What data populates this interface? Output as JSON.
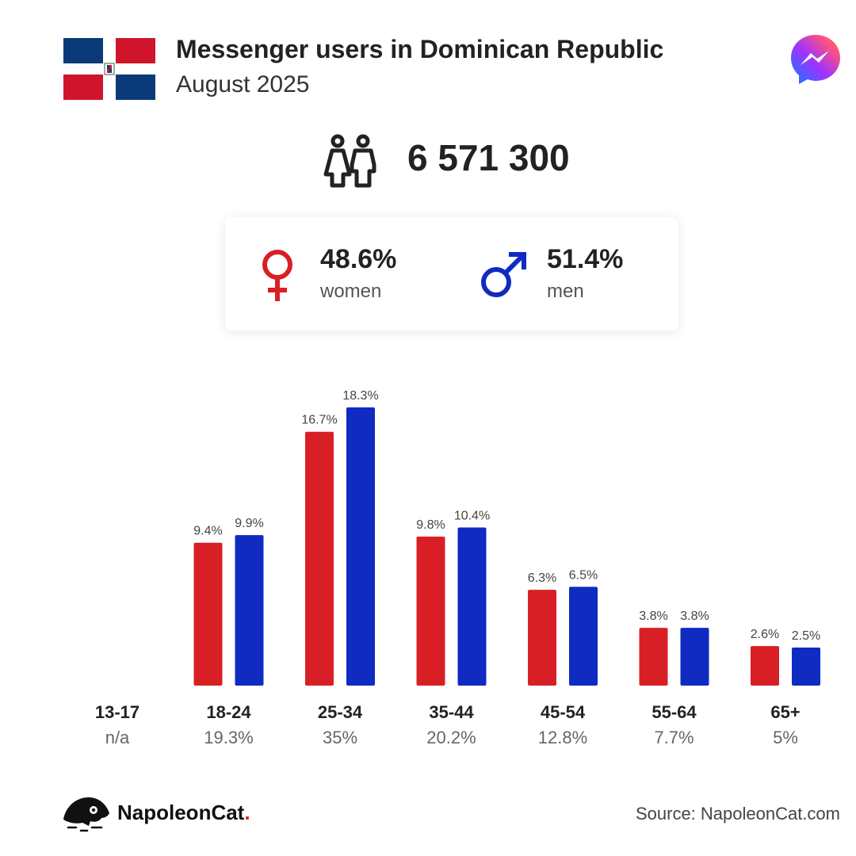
{
  "header": {
    "title": "Messenger users in Dominican Republic",
    "subtitle": "August 2025"
  },
  "total": {
    "value": "6 571 300"
  },
  "gender": {
    "women": {
      "percent": "48.6%",
      "label": "women"
    },
    "men": {
      "percent": "51.4%",
      "label": "men"
    }
  },
  "colors": {
    "women": "#d91f26",
    "men": "#0f2bc1",
    "text": "#222222"
  },
  "icons": [
    "dominican-republic-flag-icon",
    "messenger-logo-icon",
    "people-icon",
    "female-symbol-icon",
    "male-symbol-icon",
    "napoleoncat-logo-icon"
  ],
  "chart_data": {
    "type": "bar",
    "categories": [
      "13-17",
      "18-24",
      "25-34",
      "35-44",
      "45-54",
      "55-64",
      "65+"
    ],
    "category_totals": [
      "n/a",
      "19.3%",
      "35%",
      "20.2%",
      "12.8%",
      "7.7%",
      "5%"
    ],
    "series": [
      {
        "name": "women",
        "values": [
          null,
          9.4,
          16.7,
          9.8,
          6.3,
          3.8,
          2.6
        ],
        "labels": [
          "",
          "9.4%",
          "16.7%",
          "9.8%",
          "6.3%",
          "3.8%",
          "2.6%"
        ]
      },
      {
        "name": "men",
        "values": [
          null,
          9.9,
          18.3,
          10.4,
          6.5,
          3.8,
          2.5
        ],
        "labels": [
          "",
          "9.9%",
          "18.3%",
          "10.4%",
          "6.5%",
          "3.8%",
          "2.5%"
        ]
      }
    ],
    "ylim": [
      0,
      18.3
    ],
    "grid": false
  },
  "footer": {
    "brand": "NapoleonCat",
    "brand_dot": ".",
    "source": "Source: NapoleonCat.com"
  }
}
